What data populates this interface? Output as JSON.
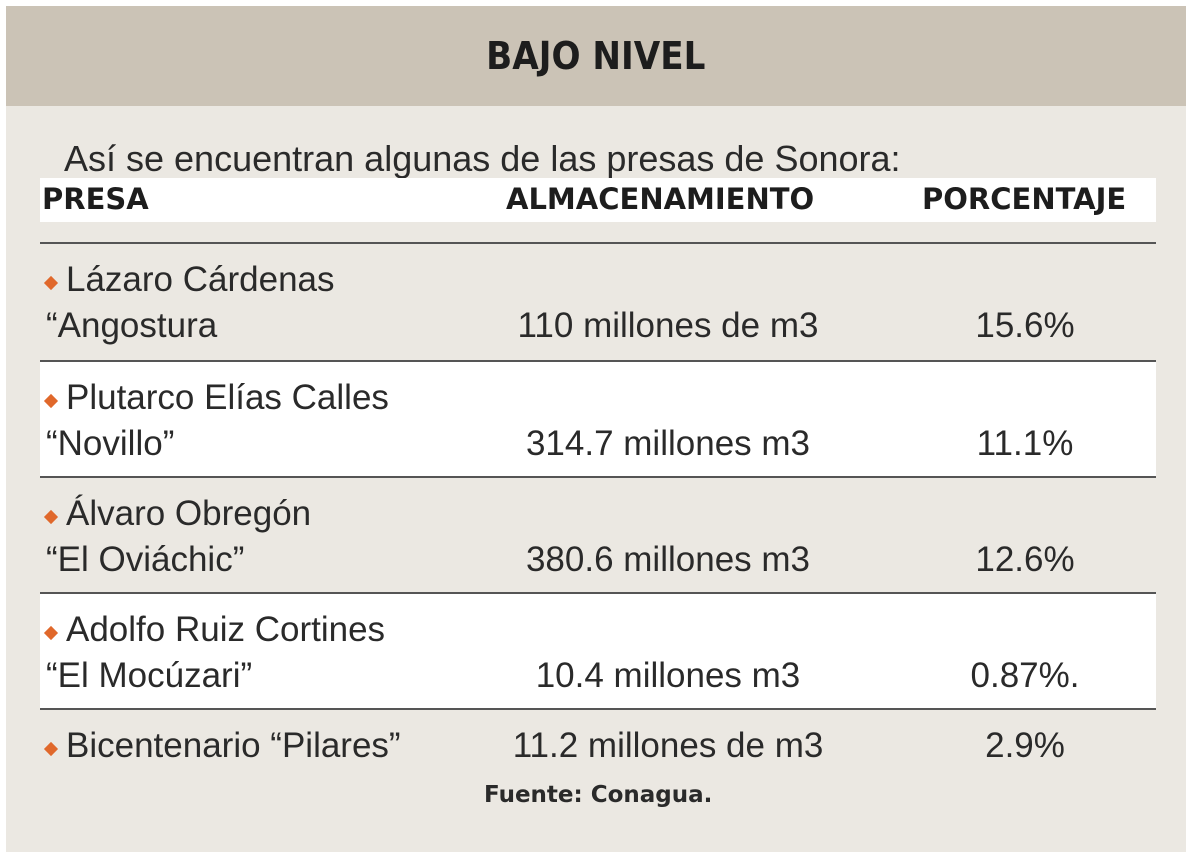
{
  "title": "BAJO NIVEL",
  "intro": "Así se encuentran algunas de las presas de Sonora:",
  "columns": {
    "presa": "PRESA",
    "almacenamiento": "ALMACENAMIENTO",
    "porcentaje": "PORCENTAJE"
  },
  "rows": [
    {
      "name_line1": "Lázaro Cárdenas",
      "name_line2": "“Angostura",
      "storage": "110 millones de m3",
      "percent": "15.6%"
    },
    {
      "name_line1": "Plutarco Elías Calles",
      "name_line2": "“Novillo”",
      "storage": "314.7 millones m3",
      "percent": "11.1%"
    },
    {
      "name_line1": "Álvaro Obregón",
      "name_line2": "“El Oviáchic”",
      "storage": "380.6 millones m3",
      "percent": "12.6%"
    },
    {
      "name_line1": "Adolfo Ruiz Cortines",
      "name_line2": "“El Mocúzari”",
      "storage": "10.4 millones m3",
      "percent": "0.87%."
    },
    {
      "name_line1": "Bicentenario “Pilares”",
      "storage": "11.2 millones de m3",
      "percent": "2.9%"
    }
  ],
  "source": "Fuente: Conagua.",
  "colors": {
    "header_bg": "#cbc3b6",
    "card_bg": "#ebe8e2",
    "bullet": "#e0682b"
  }
}
